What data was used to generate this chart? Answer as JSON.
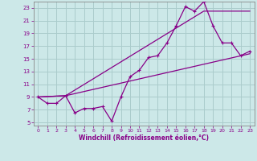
{
  "xlabel": "Windchill (Refroidissement éolien,°C)",
  "bg_color": "#cce8e8",
  "line_color": "#880088",
  "grid_color": "#aacccc",
  "xlim": [
    -0.5,
    23.5
  ],
  "ylim": [
    4.5,
    24.0
  ],
  "xticks": [
    0,
    1,
    2,
    3,
    4,
    5,
    6,
    7,
    8,
    9,
    10,
    11,
    12,
    13,
    14,
    15,
    16,
    17,
    18,
    19,
    20,
    21,
    22,
    23
  ],
  "yticks": [
    5,
    7,
    9,
    11,
    13,
    15,
    17,
    19,
    21,
    23
  ],
  "line1_markers": [
    [
      0,
      9
    ],
    [
      1,
      8
    ],
    [
      2,
      8
    ],
    [
      3,
      9.2
    ],
    [
      4,
      6.5
    ],
    [
      5,
      7.2
    ],
    [
      6,
      7.2
    ],
    [
      7,
      7.5
    ],
    [
      8,
      5.2
    ],
    [
      9,
      9.0
    ],
    [
      10,
      12.2
    ],
    [
      11,
      13.2
    ],
    [
      12,
      15.2
    ],
    [
      13,
      15.5
    ],
    [
      14,
      17.5
    ],
    [
      15,
      20.2
    ],
    [
      16,
      23.2
    ],
    [
      17,
      22.5
    ],
    [
      18,
      24.0
    ],
    [
      19,
      20.2
    ],
    [
      20,
      17.5
    ],
    [
      21,
      17.5
    ],
    [
      22,
      15.5
    ],
    [
      23,
      16.2
    ]
  ],
  "line2": [
    [
      0,
      9
    ],
    [
      3,
      9.2
    ],
    [
      23,
      15.8
    ]
  ],
  "line3": [
    [
      0,
      9
    ],
    [
      3,
      9.2
    ],
    [
      18,
      22.5
    ],
    [
      23,
      22.5
    ]
  ]
}
